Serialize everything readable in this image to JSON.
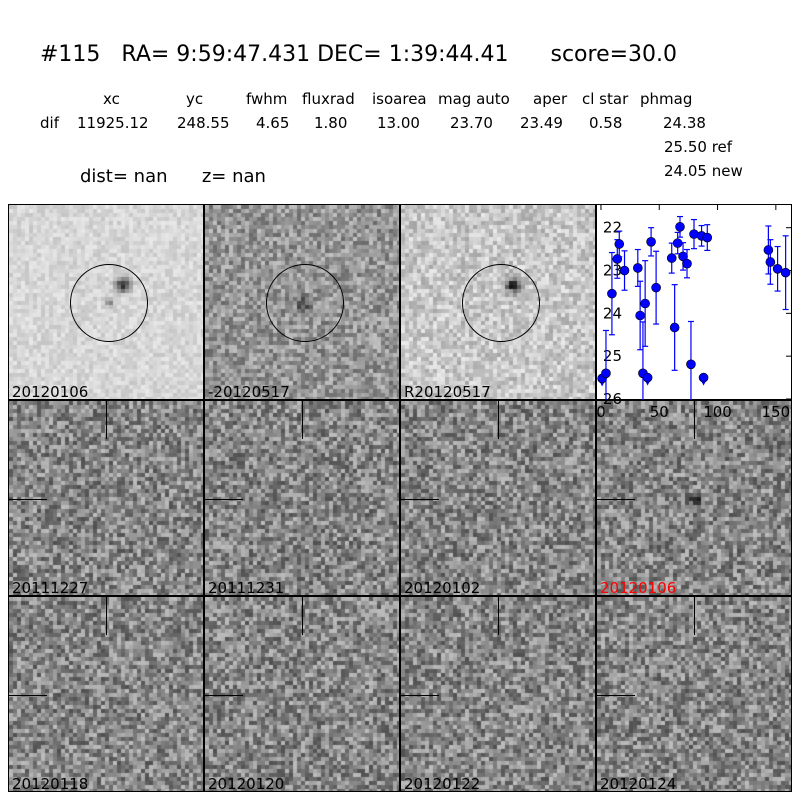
{
  "title": {
    "id": "#115",
    "ra": "RA= 9:59:47.431",
    "dec": "DEC= 1:39:44.41",
    "score": "score=30.0"
  },
  "table": {
    "headers": [
      "xc",
      "yc",
      "fwhm",
      "fluxrad",
      "isoarea",
      "mag auto",
      "aper",
      "cl star",
      "phmag"
    ],
    "row_label": "dif",
    "values": [
      "11925.12",
      "248.55",
      "4.65",
      "1.80",
      "13.00",
      "23.70",
      "23.49",
      "0.58",
      "24.38"
    ],
    "ref": "25.50 ref",
    "new": "24.05 new"
  },
  "dist": "dist=   nan",
  "z": "z=   nan",
  "stamps": {
    "top": [
      "20120106",
      "-20120517",
      "R20120517"
    ],
    "history": [
      "20111227",
      "20111231",
      "20120102",
      "20120106",
      "20120118",
      "20120120",
      "20120122",
      "20120124"
    ],
    "highlight_color": "#ff0000",
    "highlight_index": 3
  },
  "chart_data": {
    "type": "scatter",
    "xlim": [
      -3.4,
      163
    ],
    "ylim": [
      26,
      21.47
    ],
    "y_inverted": true,
    "xticks": [
      "0",
      "50",
      "100",
      "150"
    ],
    "yticks": [
      "22",
      "23",
      "24",
      "25",
      "26"
    ],
    "color": "#0000ff",
    "points": [
      {
        "x": 1,
        "y": 25.52,
        "limit": true
      },
      {
        "x": 4.3,
        "y": 25.4,
        "err": 1.0
      },
      {
        "x": 9.4,
        "y": 23.54,
        "err": 0.96
      },
      {
        "x": 14,
        "y": 22.73,
        "err": 0.45
      },
      {
        "x": 15.7,
        "y": 22.38,
        "err": 0.3
      },
      {
        "x": 20.2,
        "y": 23.0,
        "err": 0.46
      },
      {
        "x": 31.6,
        "y": 22.94,
        "err": 0.43
      },
      {
        "x": 33.6,
        "y": 24.05,
        "err": 0.8
      },
      {
        "x": 36,
        "y": 25.4,
        "err": 1.2
      },
      {
        "x": 37.9,
        "y": 23.77,
        "err": 1.0
      },
      {
        "x": 40,
        "y": 25.5,
        "limit": true
      },
      {
        "x": 43,
        "y": 22.33,
        "err": 0.33
      },
      {
        "x": 47.3,
        "y": 23.4,
        "err": 0.85
      },
      {
        "x": 60.7,
        "y": 22.71,
        "err": 0.35
      },
      {
        "x": 63.2,
        "y": 24.33,
        "err": 1.0
      },
      {
        "x": 65.8,
        "y": 22.36,
        "err": 0.25
      },
      {
        "x": 67.8,
        "y": 21.98,
        "err": 0.24
      },
      {
        "x": 70.4,
        "y": 22.67,
        "err": 0.32
      },
      {
        "x": 73.8,
        "y": 22.84,
        "err": 0.33
      },
      {
        "x": 77.2,
        "y": 25.19,
        "err": 1.0
      },
      {
        "x": 79.8,
        "y": 22.15,
        "err": 0.34
      },
      {
        "x": 86.3,
        "y": 22.19,
        "err": 0.24
      },
      {
        "x": 88,
        "y": 25.5,
        "limit": true
      },
      {
        "x": 91.2,
        "y": 22.23,
        "err": 0.3
      },
      {
        "x": 143.6,
        "y": 22.52,
        "err": 0.56
      },
      {
        "x": 145.3,
        "y": 22.8,
        "err": 0.52
      },
      {
        "x": 151.5,
        "y": 22.96,
        "err": 0.52
      },
      {
        "x": 158.4,
        "y": 23.05,
        "err": 0.86
      }
    ]
  }
}
